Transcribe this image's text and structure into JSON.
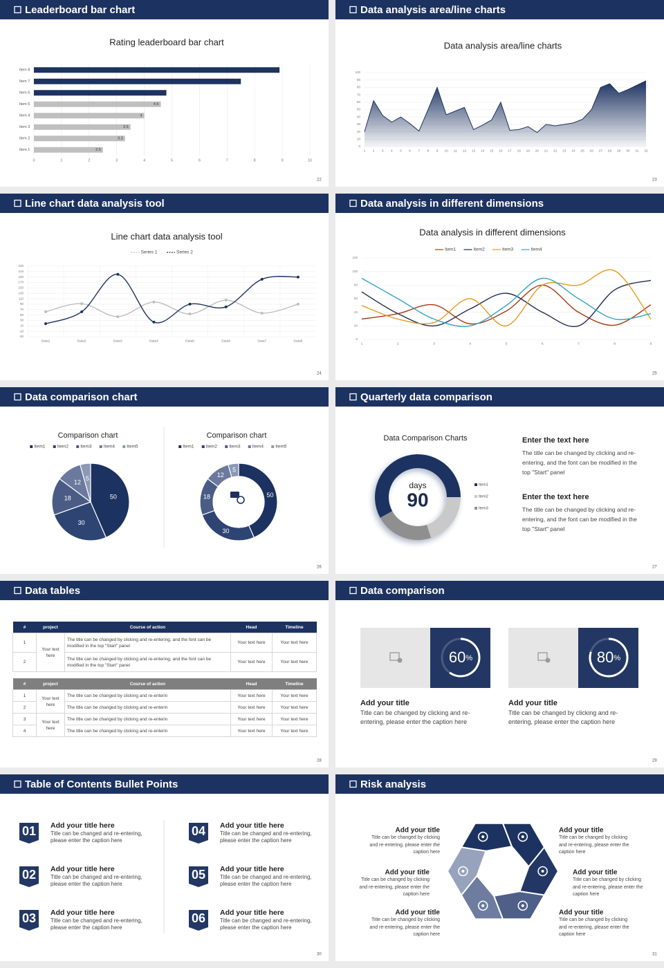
{
  "slides": [
    {
      "title": "Leaderboard bar chart",
      "page": 22
    },
    {
      "title": "Data analysis area/line charts",
      "page": 23
    },
    {
      "title": "Line chart data analysis tool",
      "page": 24
    },
    {
      "title": "Data analysis in different dimensions",
      "page": 25
    },
    {
      "title": "Data comparison chart",
      "page": 26
    },
    {
      "title": "Quarterly data comparison",
      "page": 27,
      "notes": [
        {
          "title": "Enter the text here",
          "text": "The title can be changed by clicking and re-entering, and the font can be modified in the top \"Start\" panel"
        },
        {
          "title": "Enter the text here",
          "text": "The title can be changed by clicking and re-entering, and the font can be modified in the top \"Start\" panel"
        }
      ]
    },
    {
      "title": "Data tables",
      "page": 28,
      "tables": [
        {
          "header": [
            "#",
            "project",
            "Course of action",
            "Head",
            "Timeline"
          ],
          "header_color": "#1c3260",
          "groups": [
            {
              "project": "Your text here",
              "rows": [
                [
                  "1",
                  "The title can be changed by clicking and re-entering, and the font can be modified in the top \"Start\" panel",
                  "Your text here",
                  "Your text here"
                ],
                [
                  "2",
                  "The title can be changed by clicking and re-entering, and the font can be modified in the top \"Start\" panel",
                  "Your text here",
                  "Your text here"
                ]
              ]
            }
          ]
        },
        {
          "header": [
            "#",
            "project",
            "Course of action",
            "Head",
            "Timeline"
          ],
          "header_color": "#7f7f7f",
          "groups": [
            {
              "project": "Your text here",
              "rows": [
                [
                  "1",
                  "The title can be changed by clicking and re-enterin",
                  "Your text here",
                  "Your text here"
                ],
                [
                  "2",
                  "The title can be changed by clicking and re-enterin",
                  "Your text here",
                  "Your text here"
                ]
              ]
            },
            {
              "project": "Your text here",
              "rows": [
                [
                  "3",
                  "The title can be changed by clicking and re-enterin",
                  "Your text here",
                  "Your text here"
                ],
                [
                  "4",
                  "The title can be changed by clicking and re-enterin",
                  "Your text here",
                  "Your text here"
                ]
              ]
            }
          ]
        }
      ]
    },
    {
      "title": "Data comparison",
      "page": 29,
      "cards": [
        {
          "percent": 60,
          "unit": "%",
          "title": "Add your title",
          "text": "Title can be changed by clicking and re-entering, please enter the caption here"
        },
        {
          "percent": 80,
          "unit": "%",
          "title": "Add your title",
          "text": "Title can be changed by clicking and re-entering, please enter the caption here"
        }
      ]
    },
    {
      "title": "Table of Contents Bullet Points",
      "page": 30,
      "items": [
        {
          "number": "01",
          "title": "Add your title here",
          "text": "Title can be changed and re-entering, please enter the caption here"
        },
        {
          "number": "02",
          "title": "Add your title here",
          "text": "Title can be changed and re-entering, please enter the caption here"
        },
        {
          "number": "03",
          "title": "Add your title here",
          "text": "Title can be changed and re-entering, please enter the caption here"
        },
        {
          "number": "04",
          "title": "Add your title here",
          "text": "Title can be changed and re-entering, please enter the caption here"
        },
        {
          "number": "05",
          "title": "Add your title here",
          "text": "Title can be changed and re-entering, please enter the caption here"
        },
        {
          "number": "06",
          "title": "Add your title here",
          "text": "Title can be changed and re-entering, please enter the caption here"
        }
      ]
    },
    {
      "title": "Risk analysis",
      "page": 31,
      "items": [
        {
          "title": "Add your title",
          "text": "Title can be changed by clicking and re-entering, please enter the caption here"
        },
        {
          "title": "Add your title",
          "text": "Title can be changed by clicking and re-entering, please enter the caption here"
        },
        {
          "title": "Add your title",
          "text": "Title can be changed by clicking and re-entering, please enter the caption here"
        },
        {
          "title": "Add your title",
          "text": "Title can be changed by clicking and re-entering, please enter the caption here"
        },
        {
          "title": "Add your title",
          "text": "Title can be changed by clicking and re-entering, please enter the caption here"
        },
        {
          "title": "Add your title",
          "text": "Title can be changed by clicking and re-entering, please enter the caption here"
        }
      ]
    }
  ],
  "chart_data": [
    {
      "type": "bar",
      "title": "Rating leaderboard bar chart",
      "categories": [
        "Item 1",
        "Item 2",
        "Item 3",
        "Item 4",
        "Item 5",
        "Item 6",
        "Item 7",
        "Item 8"
      ],
      "values": [
        2.5,
        3.3,
        3.5,
        4,
        4.6,
        4.8,
        7.5,
        8.9
      ],
      "colors": [
        "#bfbfbf",
        "#bfbfbf",
        "#bfbfbf",
        "#bfbfbf",
        "#bfbfbf",
        "#1c3260",
        "#1c3260",
        "#1c3260"
      ],
      "xlim": [
        0,
        10
      ],
      "xticks": [
        0,
        1,
        2,
        3,
        4,
        5,
        6,
        7,
        8,
        9,
        10
      ],
      "grid": true
    },
    {
      "type": "area",
      "title": "Data analysis area/line charts",
      "x": [
        1,
        2,
        3,
        4,
        5,
        6,
        7,
        8,
        9,
        10,
        11,
        12,
        13,
        14,
        15,
        16,
        17,
        18,
        19,
        20,
        21,
        22,
        23,
        24,
        25,
        26,
        27,
        28,
        29,
        30,
        31,
        32
      ],
      "values": [
        20,
        62,
        42,
        33,
        40,
        31,
        21,
        50,
        80,
        43,
        48,
        53,
        23,
        29,
        36,
        60,
        22,
        23,
        27,
        19,
        30,
        28,
        30,
        32,
        37,
        50,
        80,
        85,
        72,
        77,
        83,
        89
      ],
      "color": "#1c3260",
      "xlim": [
        1,
        32
      ],
      "xticks": [
        1,
        2,
        3,
        4,
        5,
        6,
        7,
        8,
        9,
        10,
        11,
        12,
        13,
        14,
        15,
        16,
        17,
        18,
        19,
        20,
        21,
        22,
        23,
        24,
        25,
        26,
        27,
        28,
        29,
        30,
        31,
        32
      ],
      "ylim": [
        0,
        100
      ],
      "yticks": [
        0,
        10,
        20,
        30,
        40,
        50,
        60,
        70,
        80,
        90,
        100
      ],
      "grid": true
    },
    {
      "type": "line",
      "title": "Line chart data analysis tool",
      "categories": [
        "Data1",
        "Data2",
        "Data3",
        "Data4",
        "Data5",
        "Data6",
        "Data7",
        "Data8"
      ],
      "series": [
        {
          "name": "Series 1",
          "color": "#bdbdbd",
          "values": [
            62,
            92,
            44,
            98,
            54,
            105,
            57,
            90
          ]
        },
        {
          "name": "Series 2",
          "color": "#1c3260",
          "values": [
            18,
            62,
            200,
            24,
            90,
            80,
            182,
            190
          ]
        }
      ],
      "ylim": [
        -30,
        230
      ],
      "yticks": [
        -30,
        -10,
        10,
        30,
        50,
        70,
        90,
        110,
        130,
        150,
        170,
        190,
        210,
        230
      ],
      "grid": true,
      "smooth": true,
      "markers": true
    },
    {
      "type": "line",
      "title": "Data analysis in different dimensions",
      "x": [
        1,
        2,
        3,
        4,
        5,
        6,
        7,
        8,
        9
      ],
      "series": [
        {
          "name": "Item1",
          "color": "#a8380f",
          "values": [
            30,
            38,
            51,
            23,
            42,
            80,
            40,
            21,
            51
          ]
        },
        {
          "name": "Item2",
          "color": "#1c2a4e",
          "values": [
            70,
            38,
            20,
            45,
            68,
            40,
            20,
            73,
            87
          ]
        },
        {
          "name": "Item3",
          "color": "#e59a1c",
          "values": [
            50,
            30,
            25,
            60,
            20,
            80,
            80,
            101,
            30
          ]
        },
        {
          "name": "Item4",
          "color": "#2ba3c4",
          "values": [
            90,
            60,
            30,
            20,
            50,
            90,
            60,
            30,
            38
          ]
        }
      ],
      "xlim": [
        1,
        9
      ],
      "xticks": [
        1,
        2,
        3,
        4,
        5,
        6,
        7,
        8,
        9
      ],
      "ylim": [
        0,
        120
      ],
      "yticks": [
        0,
        20,
        40,
        60,
        80,
        100,
        120
      ],
      "grid": true,
      "smooth": true,
      "markers": false
    },
    {
      "type": "pie",
      "title": "Comparison chart",
      "categories": [
        "Item1",
        "Item2",
        "Item3",
        "Item4",
        "Item5"
      ],
      "values": [
        50,
        30,
        18,
        12,
        5
      ],
      "colors": [
        "#1c3260",
        "#2e4473",
        "#4a5c86",
        "#6a799d",
        "#8c98b5"
      ]
    },
    {
      "type": "donut",
      "title": "Comparison chart",
      "categories": [
        "Item1",
        "Item2",
        "Item3",
        "Item4",
        "Item5"
      ],
      "values": [
        50,
        30,
        18,
        12,
        5
      ],
      "colors": [
        "#1c3260",
        "#2e4473",
        "#4a5c86",
        "#6a799d",
        "#8c98b5"
      ]
    },
    {
      "type": "donut",
      "title": "Data Comparison Charts",
      "center_label": "days",
      "center_value": 90,
      "categories": [
        "Item1",
        "Item2",
        "Item3"
      ],
      "values": [
        58,
        20,
        22
      ],
      "colors": [
        "#1c3260",
        "#c9c9c9",
        "#8f8f8f"
      ]
    }
  ]
}
